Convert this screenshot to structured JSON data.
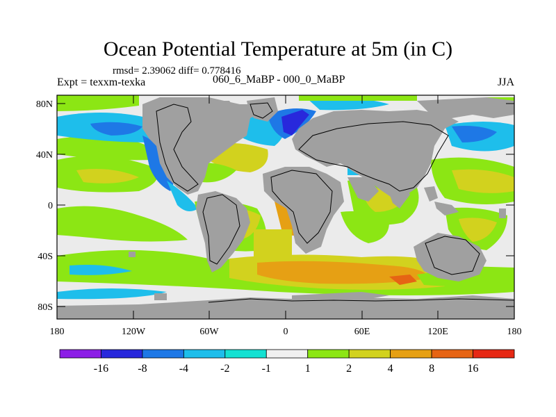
{
  "header": {
    "title": "Ocean Potential Temperature at 5m (in C)",
    "stats": "rmsd= 2.39062 diff= 0.778416",
    "experiment": "Expt = texxm-texka",
    "difference_label": "060_6_MaBP - 000_0_MaBP",
    "season": "JJA"
  },
  "map": {
    "lon_ticks": [
      "180",
      "120W",
      "60W",
      "0",
      "60E",
      "120E",
      "180"
    ],
    "lat_ticks": [
      "80N",
      "40N",
      "0",
      "40S",
      "80S"
    ],
    "land_color": "#a0a0a0",
    "ocean_neutral_color": "#ebebeb"
  },
  "colorbar": {
    "labels": [
      "-16",
      "-8",
      "-4",
      "-2",
      "-1",
      "1",
      "2",
      "4",
      "8",
      "16"
    ],
    "colors": [
      "#8c1ee6",
      "#2828dc",
      "#1e78e6",
      "#1ebeeb",
      "#14e1d2",
      "#f0f0f0",
      "#8ce614",
      "#d2d21e",
      "#e6a014",
      "#e66414",
      "#e62814"
    ]
  }
}
